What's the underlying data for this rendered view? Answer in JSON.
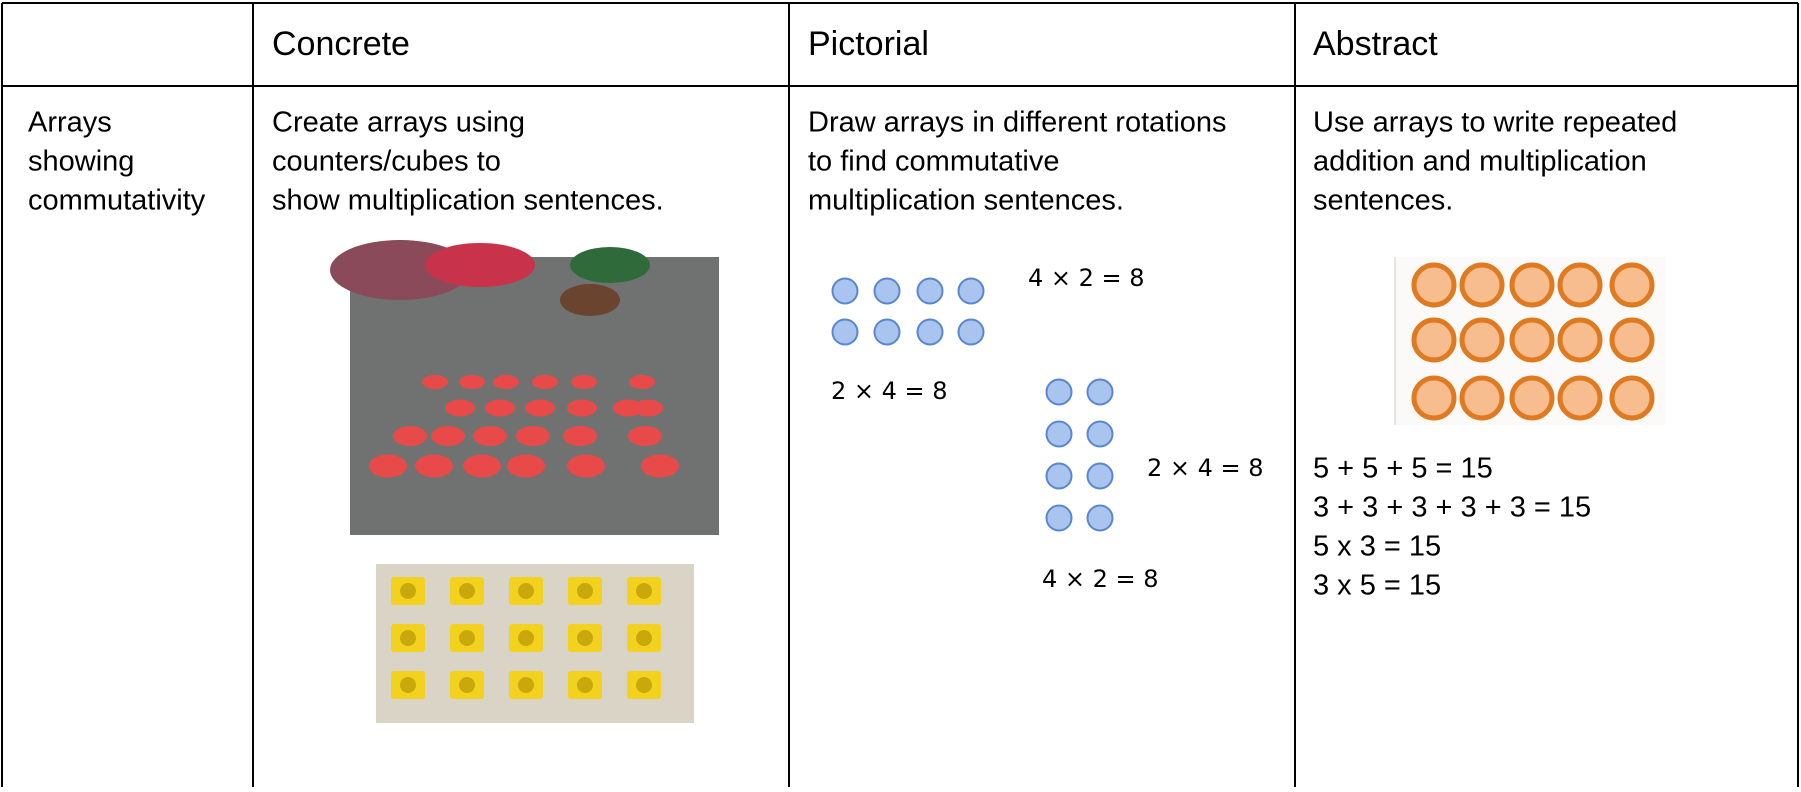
{
  "header": {
    "concrete": "Concrete",
    "pictorial": "Pictorial",
    "abstract": "Abstract"
  },
  "row": {
    "label": [
      "Arrays",
      "showing",
      "commutativity"
    ],
    "concrete": [
      "Create arrays using",
      "counters/cubes to",
      "show multiplication sentences."
    ],
    "pictorial": {
      "text": [
        "Draw arrays in different rotations",
        "to find commutative",
        "multiplication sentences."
      ],
      "equations": [
        "4 × 2 = 8",
        "2 × 4 = 8",
        "2 × 4 = 8",
        "4 × 2 = 8"
      ]
    },
    "abstract": {
      "text": [
        "Use arrays to write repeated",
        "addition and multiplication",
        "sentences."
      ],
      "equations": [
        "5 + 5 + 5 = 15",
        "3 + 3 + 3 + 3 + 3 = 15",
        "5 x 3 = 15",
        "3 x 5 = 15"
      ]
    }
  }
}
